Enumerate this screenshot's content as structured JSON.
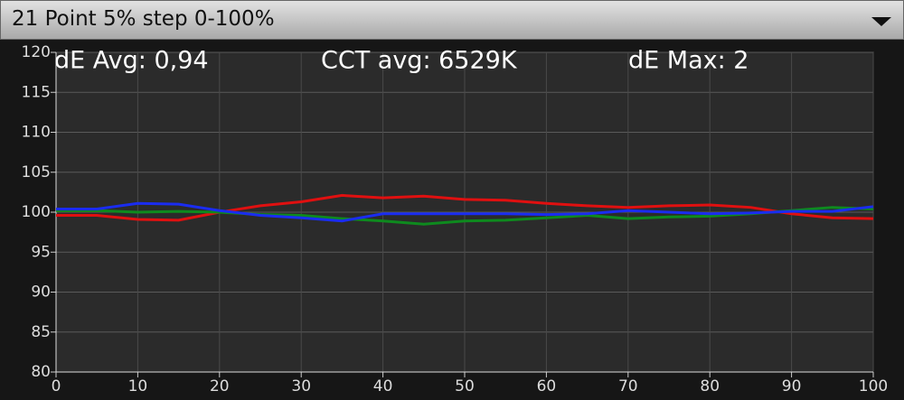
{
  "chart_data": {
    "type": "line",
    "title": "21 Point 5% step 0-100%",
    "annotations": [
      "dE Avg: 0,94",
      "CCT avg: 6529K",
      "dE Max: 2"
    ],
    "x": [
      0,
      5,
      10,
      15,
      20,
      25,
      30,
      35,
      40,
      45,
      50,
      55,
      60,
      65,
      70,
      75,
      80,
      85,
      90,
      95,
      100
    ],
    "series": [
      {
        "color": "#e01010",
        "values": [
          99.6,
          99.6,
          99.1,
          99.0,
          100.0,
          100.8,
          101.3,
          102.1,
          101.8,
          102.0,
          101.6,
          101.5,
          101.1,
          100.8,
          100.6,
          100.8,
          100.9,
          100.6,
          99.8,
          99.3,
          99.2
        ]
      },
      {
        "color": "#0e8a1e",
        "values": [
          100.2,
          100.2,
          100.0,
          100.1,
          100.0,
          99.7,
          99.6,
          99.2,
          98.9,
          98.5,
          98.9,
          99.0,
          99.3,
          99.6,
          99.2,
          99.4,
          99.5,
          99.8,
          100.2,
          100.6,
          100.4
        ]
      },
      {
        "color": "#1a2cf0",
        "values": [
          100.4,
          100.4,
          101.1,
          101.0,
          100.2,
          99.6,
          99.3,
          98.9,
          99.8,
          99.8,
          99.8,
          99.8,
          99.7,
          99.8,
          100.2,
          100.0,
          99.8,
          99.9,
          100.1,
          100.1,
          100.7
        ]
      }
    ],
    "xlim": [
      0,
      100
    ],
    "xticks": [
      0,
      10,
      20,
      30,
      40,
      50,
      60,
      70,
      80,
      90,
      100
    ],
    "ylim": [
      80,
      120
    ],
    "yticks": [
      80,
      85,
      90,
      95,
      100,
      105,
      110,
      115,
      120
    ],
    "grid": true
  }
}
